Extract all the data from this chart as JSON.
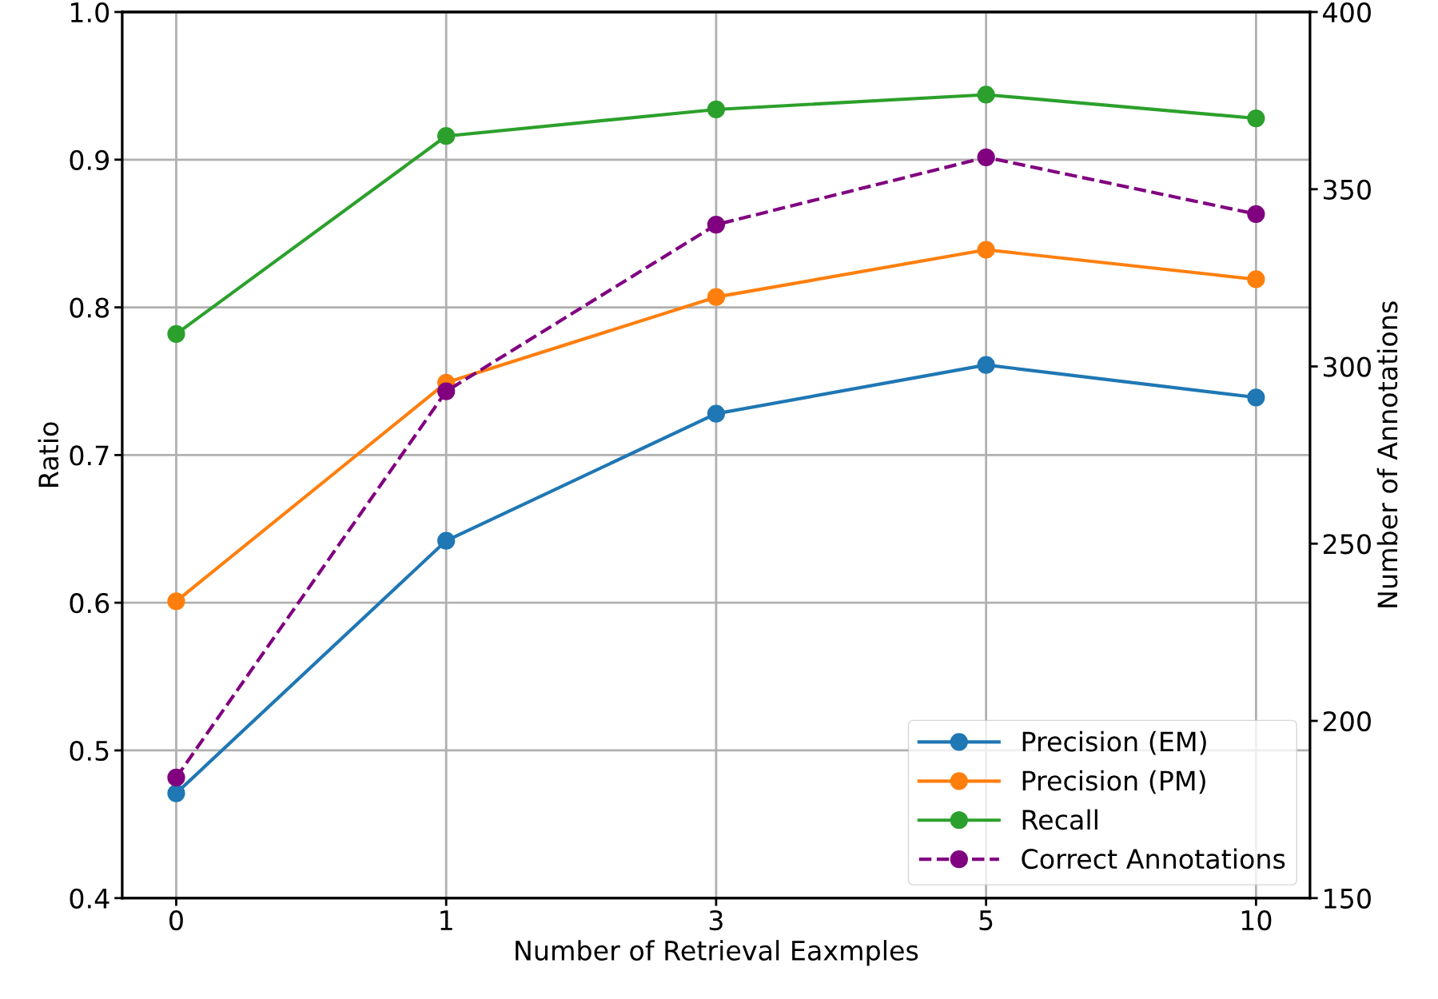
{
  "chart_data": {
    "type": "line",
    "xlabel": "Number of Retrieval Eaxmples",
    "ylabel": "Ratio",
    "y2label": "Number of Annotations",
    "categories": [
      "0",
      "1",
      "3",
      "5",
      "10"
    ],
    "series": [
      {
        "name": "Precision (EM)",
        "color": "#1f77b4",
        "values": [
          0.471,
          0.642,
          0.728,
          0.761,
          0.739
        ]
      },
      {
        "name": "Precision (PM)",
        "color": "#ff7f0e",
        "values": [
          0.601,
          0.749,
          0.807,
          0.839,
          0.819
        ]
      },
      {
        "name": "Recall",
        "color": "#2ca02c",
        "values": [
          0.782,
          0.916,
          0.934,
          0.944,
          0.928
        ]
      },
      {
        "name": "Correct Annotations",
        "color": "#800080",
        "values": [
          184,
          293,
          340,
          359,
          343
        ],
        "axis": "y2",
        "line_style": "dashed"
      }
    ],
    "ylim": [
      0.4,
      1.0
    ],
    "yticks": [
      {
        "value": 0.4,
        "label": "0.4"
      },
      {
        "value": 0.5,
        "label": "0.5"
      },
      {
        "value": 0.6,
        "label": "0.6"
      },
      {
        "value": 0.7,
        "label": "0.7"
      },
      {
        "value": 0.8,
        "label": "0.8"
      },
      {
        "value": 0.9,
        "label": "0.9"
      },
      {
        "value": 1.0,
        "label": "1.0"
      }
    ],
    "y2lim": [
      150,
      400
    ],
    "y2ticks": [
      150,
      200,
      250,
      300,
      350,
      400
    ],
    "grid": true,
    "legend": "bottom right",
    "marker": "circle",
    "line_style": "solid"
  }
}
